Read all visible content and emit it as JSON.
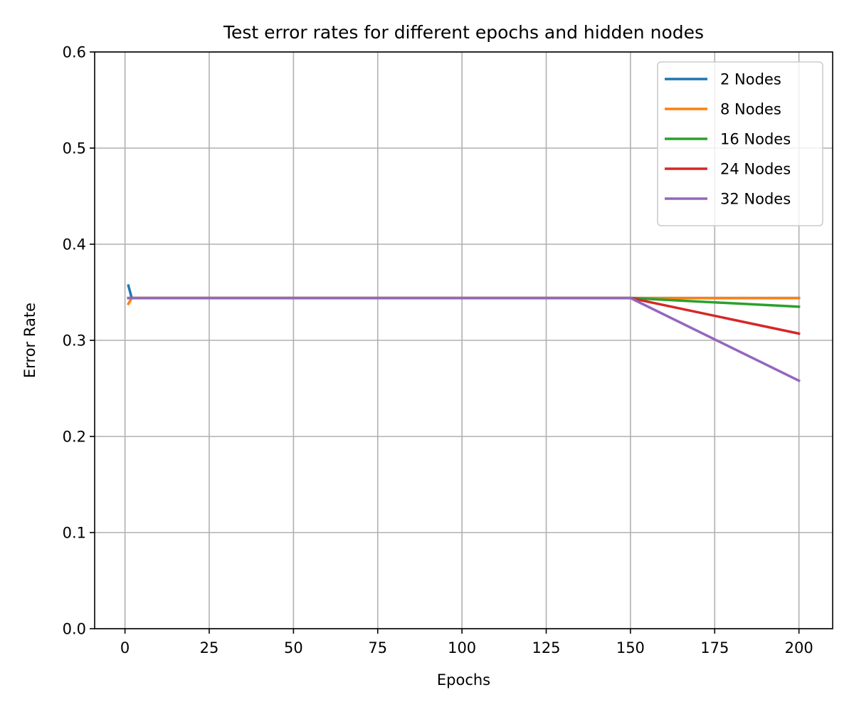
{
  "chart_data": {
    "type": "line",
    "title": "Test error rates for different epochs and hidden nodes",
    "xlabel": "Epochs",
    "ylabel": "Error Rate",
    "xlim": [
      -9,
      210
    ],
    "ylim": [
      0,
      0.6
    ],
    "xticks": [
      0,
      25,
      50,
      75,
      100,
      125,
      150,
      175,
      200
    ],
    "xtick_labels": [
      "0",
      "25",
      "50",
      "75",
      "100",
      "125",
      "150",
      "175",
      "200"
    ],
    "yticks": [
      0.0,
      0.1,
      0.2,
      0.3,
      0.4,
      0.5,
      0.6
    ],
    "ytick_labels": [
      "0.0",
      "0.1",
      "0.2",
      "0.3",
      "0.4",
      "0.5",
      "0.6"
    ],
    "grid": true,
    "legend_position": "top-right",
    "series": [
      {
        "name": "2 Nodes",
        "color": "#1f77b4",
        "x": [
          1,
          2,
          150,
          200
        ],
        "y": [
          0.357,
          0.344,
          0.344,
          0.344
        ]
      },
      {
        "name": "8 Nodes",
        "color": "#ff7f0e",
        "x": [
          1,
          2,
          150,
          200
        ],
        "y": [
          0.338,
          0.344,
          0.344,
          0.344
        ]
      },
      {
        "name": "16 Nodes",
        "color": "#2ca02c",
        "x": [
          1,
          2,
          150,
          200
        ],
        "y": [
          0.344,
          0.344,
          0.344,
          0.335
        ]
      },
      {
        "name": "24 Nodes",
        "color": "#d62728",
        "x": [
          1,
          2,
          150,
          200
        ],
        "y": [
          0.344,
          0.344,
          0.344,
          0.307
        ]
      },
      {
        "name": "32 Nodes",
        "color": "#9467bd",
        "x": [
          1,
          2,
          150,
          200
        ],
        "y": [
          0.344,
          0.344,
          0.344,
          0.258
        ]
      }
    ]
  }
}
